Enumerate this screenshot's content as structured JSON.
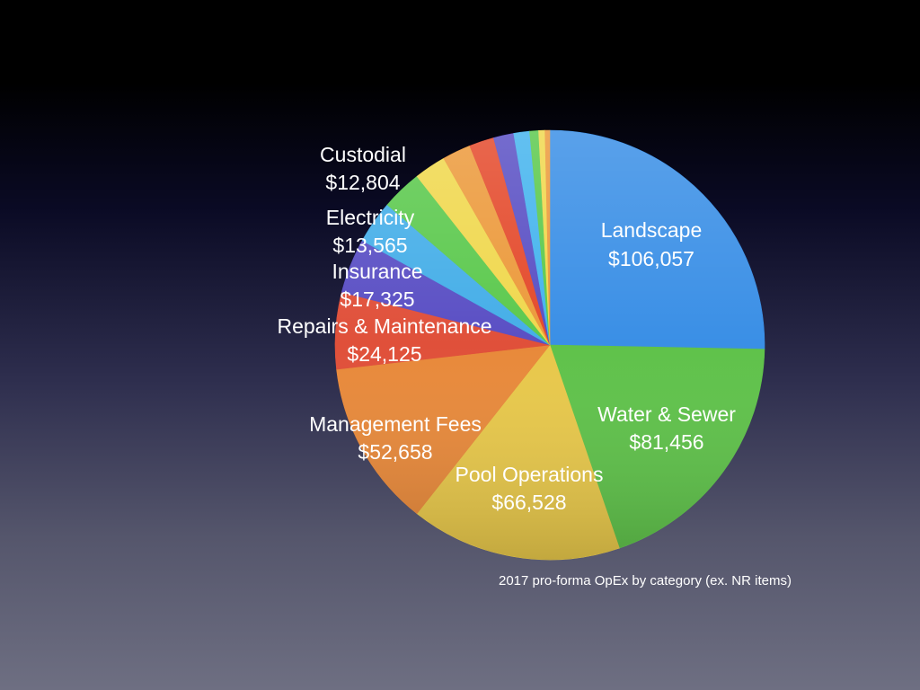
{
  "chart_data": {
    "type": "pie",
    "title": "",
    "caption": "2017 pro-forma OpEx by category (ex. NR items)",
    "start_angle": "12 o'clock",
    "direction": "clockwise",
    "slices": [
      {
        "label": "Landscape",
        "value_text": "$106,057",
        "value": 106057,
        "color": "#3a8fe6",
        "labeled": true
      },
      {
        "label": "Water & Sewer",
        "value_text": "$81,456",
        "value": 81456,
        "color": "#5fc24a",
        "labeled": true
      },
      {
        "label": "Pool Operations",
        "value_text": "$66,528",
        "value": 66528,
        "color": "#e8c84a",
        "labeled": true
      },
      {
        "label": "Management Fees",
        "value_text": "$52,658",
        "value": 52658,
        "color": "#e8893a",
        "labeled": true
      },
      {
        "label": "Repairs & Maintenance",
        "value_text": "$24,125",
        "value": 24125,
        "color": "#e0503a",
        "labeled": true
      },
      {
        "label": "Insurance",
        "value_text": "$17,325",
        "value": 17325,
        "color": "#5a4fc4",
        "labeled": true
      },
      {
        "label": "Electricity",
        "value_text": "$13,565",
        "value": 13565,
        "color": "#45aee8",
        "labeled": true
      },
      {
        "label": "Custodial",
        "value_text": "$12,804",
        "value": 12804,
        "color": "#5cc94e",
        "labeled": true
      },
      {
        "label": "",
        "value_text": "",
        "value": 10000,
        "color": "#f0d84e",
        "labeled": false
      },
      {
        "label": "",
        "value_text": "",
        "value": 9000,
        "color": "#ec9a3c",
        "labeled": false
      },
      {
        "label": "",
        "value_text": "",
        "value": 7800,
        "color": "#e44a2c",
        "labeled": false
      },
      {
        "label": "",
        "value_text": "",
        "value": 6400,
        "color": "#5a50c4",
        "labeled": false
      },
      {
        "label": "",
        "value_text": "",
        "value": 5000,
        "color": "#45b4ee",
        "labeled": false
      },
      {
        "label": "",
        "value_text": "",
        "value": 2800,
        "color": "#5cc94e",
        "labeled": false
      },
      {
        "label": "",
        "value_text": "",
        "value": 2000,
        "color": "#f0d84e",
        "labeled": false
      },
      {
        "label": "",
        "value_text": "",
        "value": 1500,
        "color": "#ec9a3c",
        "labeled": false
      }
    ]
  }
}
